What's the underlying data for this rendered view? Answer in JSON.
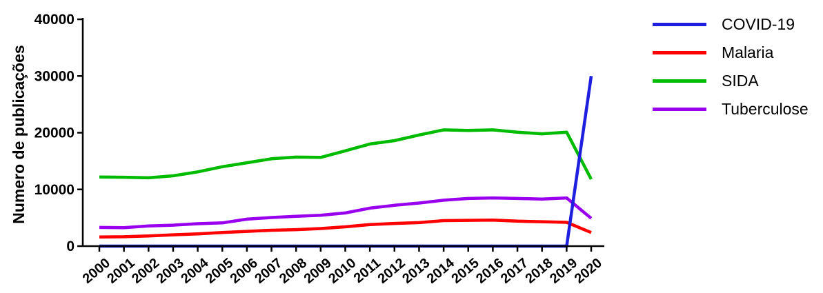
{
  "chart_data": {
    "type": "line",
    "ylabel": "Numero de publicações",
    "xlabel": "",
    "ylim": [
      0,
      40000
    ],
    "yticks": [
      0,
      10000,
      20000,
      30000,
      40000
    ],
    "categories": [
      "2000",
      "2001",
      "2002",
      "2003",
      "2004",
      "2005",
      "2006",
      "2007",
      "2008",
      "2009",
      "2010",
      "2011",
      "2012",
      "2013",
      "2014",
      "2015",
      "2016",
      "2017",
      "2018",
      "2019",
      "2020"
    ],
    "legend_position": "right",
    "series": [
      {
        "name": "COVID-19",
        "color": "#1f1fe0",
        "values": [
          0,
          0,
          0,
          0,
          0,
          0,
          0,
          0,
          0,
          0,
          0,
          0,
          0,
          0,
          0,
          0,
          0,
          0,
          0,
          0,
          30000
        ]
      },
      {
        "name": "Malaria",
        "color": "#ff0000",
        "values": [
          1600,
          1650,
          1800,
          2000,
          2150,
          2400,
          2600,
          2800,
          2900,
          3100,
          3400,
          3800,
          4000,
          4150,
          4500,
          4550,
          4600,
          4400,
          4300,
          4200,
          2400
        ]
      },
      {
        "name": "SIDA",
        "color": "#00bb00",
        "values": [
          12200,
          12150,
          12050,
          12400,
          13100,
          14000,
          14700,
          15400,
          15700,
          15650,
          16800,
          18000,
          18600,
          19600,
          20500,
          20400,
          20500,
          20100,
          19800,
          20100,
          11800
        ]
      },
      {
        "name": "Tuberculose",
        "color": "#9900ee",
        "values": [
          3300,
          3250,
          3550,
          3700,
          3950,
          4100,
          4750,
          5050,
          5250,
          5450,
          5850,
          6700,
          7200,
          7600,
          8100,
          8400,
          8500,
          8400,
          8300,
          8500,
          4900
        ]
      }
    ]
  }
}
